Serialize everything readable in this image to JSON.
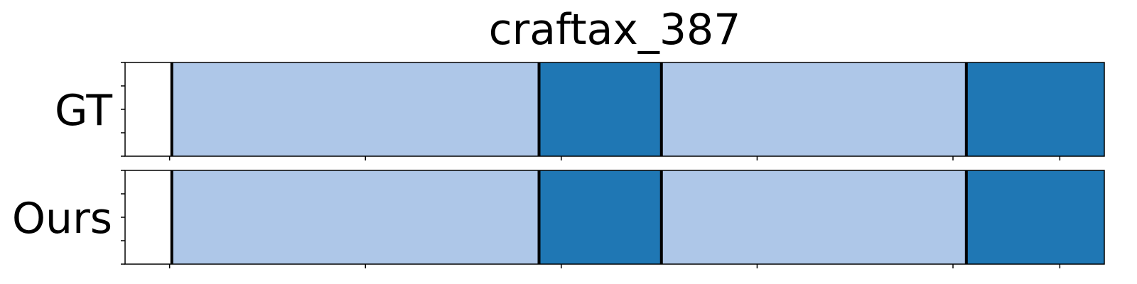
{
  "chart_data": {
    "type": "bar",
    "title": "craftax_387",
    "xlim": [
      0,
      220
    ],
    "x_ticks": [
      10,
      54,
      98,
      142,
      186,
      210
    ],
    "rows": [
      {
        "label": "GT",
        "segments": [
          {
            "start": 10.5,
            "end": 93,
            "color": "#aec7e8"
          },
          {
            "start": 93,
            "end": 120.5,
            "color": "#1f77b4"
          },
          {
            "start": 120.5,
            "end": 189,
            "color": "#aec7e8"
          },
          {
            "start": 189,
            "end": 230.5,
            "color": "#1f77b4"
          }
        ],
        "boundaries": [
          10.5,
          93,
          120.5,
          189,
          230.5
        ]
      },
      {
        "label": "Ours",
        "segments": [
          {
            "start": 10.5,
            "end": 93,
            "color": "#aec7e8"
          },
          {
            "start": 93,
            "end": 120.5,
            "color": "#1f77b4"
          },
          {
            "start": 120.5,
            "end": 189,
            "color": "#aec7e8"
          },
          {
            "start": 189,
            "end": 230.5,
            "color": "#1f77b4"
          }
        ],
        "boundaries": [
          10.5,
          93,
          120.5,
          189,
          230.5
        ]
      }
    ],
    "legend": "none",
    "grid": false
  }
}
